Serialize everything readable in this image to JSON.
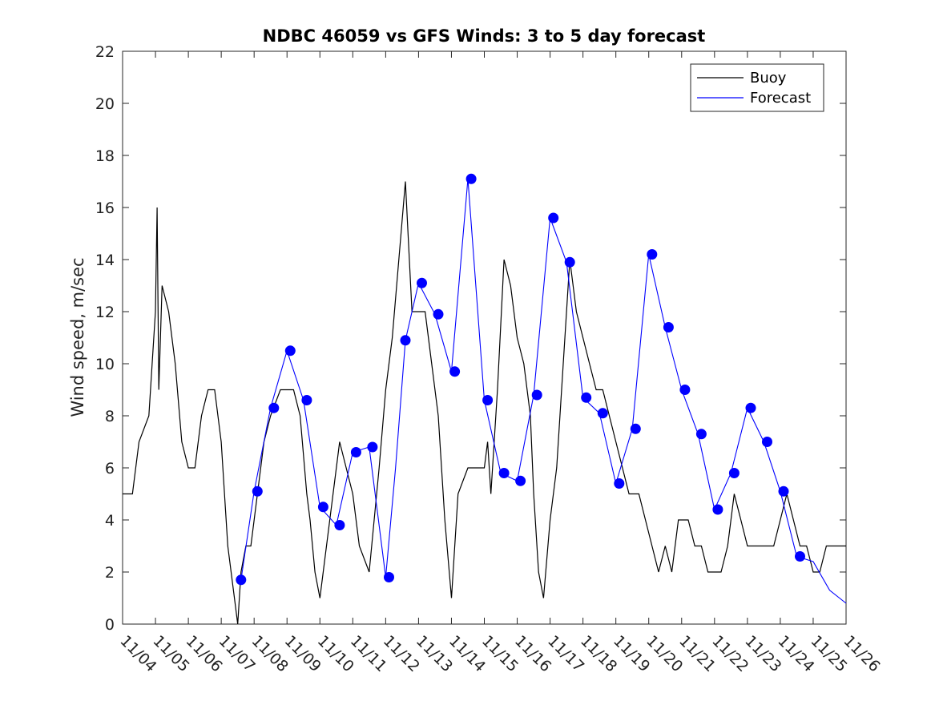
{
  "chart_data": {
    "type": "line",
    "title": "NDBC 46059 vs GFS Winds: 3 to 5 day forecast",
    "xlabel": "",
    "ylabel": "Wind speed, m/sec",
    "ylim": [
      0,
      22
    ],
    "yticks": [
      0,
      2,
      4,
      6,
      8,
      10,
      12,
      14,
      16,
      18,
      20,
      22
    ],
    "xlim": [
      0,
      22
    ],
    "xtick_labels": [
      "11/04",
      "11/05",
      "11/06",
      "11/07",
      "11/08",
      "11/09",
      "11/10",
      "11/11",
      "11/12",
      "11/13",
      "11/14",
      "11/15",
      "11/16",
      "11/17",
      "11/18",
      "11/19",
      "11/20",
      "11/21",
      "11/22",
      "11/23",
      "11/24",
      "11/25",
      "11/26"
    ],
    "legend": {
      "placement": "top-right",
      "entries": [
        "Buoy",
        "Forecast"
      ]
    },
    "colors": {
      "buoy": "#000000",
      "forecast": "#0000ff",
      "markers": "#0000ff"
    },
    "series": [
      {
        "name": "Buoy",
        "x": [
          0,
          0.3,
          0.5,
          0.8,
          1.0,
          1.05,
          1.1,
          1.2,
          1.4,
          1.6,
          1.8,
          2.0,
          2.2,
          2.4,
          2.6,
          2.8,
          3.0,
          3.2,
          3.4,
          3.5,
          3.6,
          3.75,
          3.9,
          4.1,
          4.3,
          4.5,
          4.8,
          5.0,
          5.2,
          5.4,
          5.6,
          5.7,
          5.85,
          6.0,
          6.2,
          6.4,
          6.6,
          6.8,
          7.0,
          7.2,
          7.5,
          7.8,
          8.0,
          8.2,
          8.4,
          8.6,
          8.8,
          9.0,
          9.2,
          9.4,
          9.6,
          9.8,
          10.0,
          10.2,
          10.5,
          10.8,
          11.0,
          11.1,
          11.2,
          11.4,
          11.6,
          11.8,
          12.0,
          12.2,
          12.4,
          12.5,
          12.65,
          12.8,
          13.0,
          13.2,
          13.4,
          13.6,
          13.8,
          14.0,
          14.2,
          14.4,
          14.6,
          14.8,
          15.0,
          15.2,
          15.4,
          15.5,
          15.7,
          15.9,
          16.1,
          16.3,
          16.5,
          16.7,
          16.9,
          17.0,
          17.2,
          17.4,
          17.6,
          17.8,
          18.0,
          18.2,
          18.4,
          18.6,
          18.8,
          19.0,
          19.2,
          19.4,
          19.6,
          19.8,
          20.0,
          20.2,
          20.4,
          20.6,
          20.8,
          21.0,
          21.2,
          21.4,
          21.6,
          21.8,
          22.0
        ],
        "values": [
          5,
          5,
          7,
          8,
          12,
          16,
          9,
          13,
          12,
          10,
          7,
          6,
          6,
          8,
          9,
          9,
          7,
          3,
          1,
          0,
          2,
          3,
          3,
          5,
          7,
          8,
          9,
          9,
          9,
          8,
          5,
          4,
          2,
          1,
          3,
          5,
          7,
          6,
          5,
          3,
          2,
          6,
          9,
          11,
          14,
          17,
          12,
          12,
          12,
          10,
          8,
          4,
          1,
          5,
          6,
          6,
          6,
          7,
          5,
          9,
          14,
          13,
          11,
          10,
          8,
          5,
          2,
          1,
          4,
          6,
          10,
          14,
          12,
          11,
          10,
          9,
          9,
          8,
          7,
          6,
          5,
          5,
          5,
          4,
          3,
          2,
          3,
          2,
          4,
          4,
          4,
          3,
          3,
          2,
          2,
          2,
          3,
          5,
          4,
          3,
          3,
          3,
          3,
          3,
          4,
          5,
          4,
          3,
          3,
          2,
          2,
          3,
          3,
          3,
          3
        ]
      },
      {
        "name": "Forecast",
        "x": [
          3.6,
          4.0,
          4.5,
          5.0,
          5.5,
          6.0,
          6.5,
          7.0,
          7.5,
          8.0,
          8.3,
          8.6,
          9.0,
          9.5,
          10.0,
          10.5,
          11.0,
          11.5,
          12.0,
          12.5,
          13.0,
          13.5,
          14.0,
          14.5,
          15.0,
          15.5,
          16.0,
          16.5,
          17.0,
          17.5,
          18.0,
          18.5,
          19.0,
          19.5,
          20.0,
          20.5,
          21.0,
          21.5,
          22.0
        ],
        "values": [
          1.7,
          5.1,
          8.3,
          10.5,
          8.6,
          4.5,
          3.8,
          6.6,
          6.8,
          1.8,
          6.0,
          10.9,
          13.1,
          11.9,
          9.7,
          17.1,
          8.6,
          5.8,
          5.5,
          8.8,
          15.6,
          13.9,
          8.7,
          8.1,
          5.4,
          7.5,
          14.2,
          11.4,
          9.0,
          7.3,
          4.4,
          5.8,
          8.3,
          7.0,
          5.1,
          2.6,
          2.4,
          1.3,
          0.8
        ]
      }
    ],
    "markers": {
      "name": "Forecast",
      "x": [
        3.6,
        4.1,
        4.6,
        5.1,
        5.6,
        6.1,
        6.6,
        7.1,
        7.6,
        8.1,
        8.6,
        9.1,
        9.6,
        10.1,
        10.6,
        11.1,
        11.6,
        12.1,
        12.6,
        13.1,
        13.6,
        14.1,
        14.6,
        15.1,
        15.6,
        16.1,
        16.6,
        17.1,
        17.6,
        18.1,
        18.6,
        19.1,
        19.6,
        20.1,
        20.6
      ],
      "values": [
        1.7,
        5.1,
        8.3,
        10.5,
        8.6,
        4.5,
        3.8,
        6.6,
        6.8,
        1.8,
        10.9,
        13.1,
        11.9,
        9.7,
        17.1,
        8.6,
        5.8,
        5.5,
        8.8,
        15.6,
        13.9,
        8.7,
        8.1,
        5.4,
        7.5,
        14.2,
        11.4,
        9.0,
        7.3,
        4.4,
        5.8,
        8.3,
        7.0,
        5.1,
        2.6
      ]
    }
  }
}
